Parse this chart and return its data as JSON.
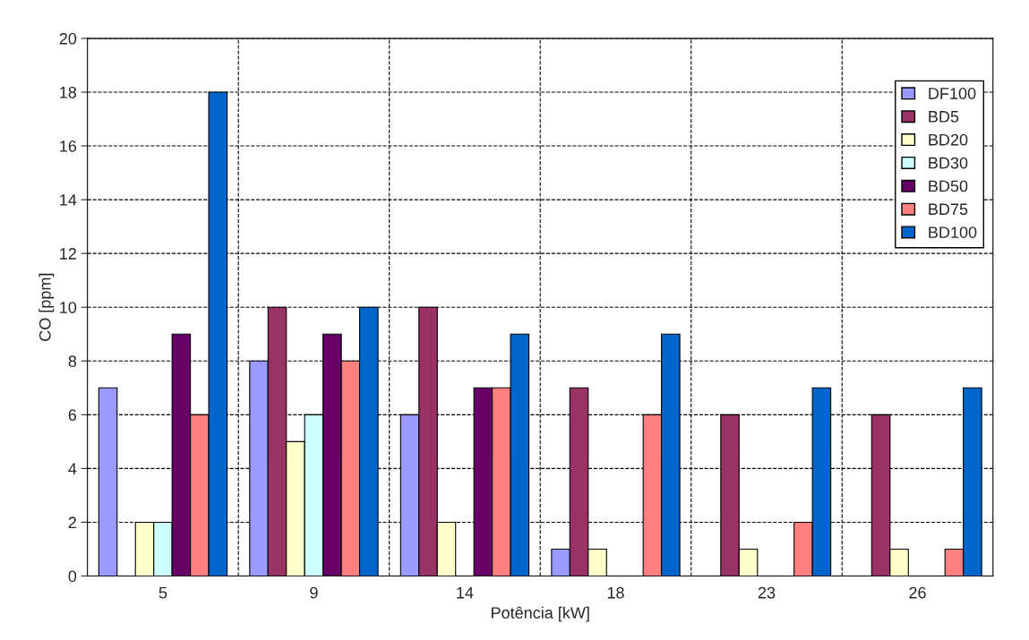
{
  "chart_data": {
    "type": "bar",
    "xlabel": "Potência [kW]",
    "ylabel": "CO [ppm]",
    "categories": [
      "5",
      "9",
      "14",
      "18",
      "23",
      "26"
    ],
    "series": [
      {
        "name": "DF100",
        "color": "#9999ff",
        "values": [
          7,
          8,
          6,
          1,
          null,
          null
        ]
      },
      {
        "name": "BD5",
        "color": "#993366",
        "values": [
          null,
          10,
          10,
          7,
          6,
          6
        ]
      },
      {
        "name": "BD20",
        "color": "#ffffcc",
        "values": [
          2,
          5,
          2,
          1,
          1,
          1
        ]
      },
      {
        "name": "BD30",
        "color": "#ccffff",
        "values": [
          2,
          6,
          null,
          null,
          null,
          null
        ]
      },
      {
        "name": "BD50",
        "color": "#660066",
        "values": [
          9,
          9,
          7,
          null,
          null,
          null
        ]
      },
      {
        "name": "BD75",
        "color": "#ff8080",
        "values": [
          6,
          8,
          7,
          6,
          2,
          1
        ]
      },
      {
        "name": "BD100",
        "color": "#0066cc",
        "values": [
          18,
          10,
          9,
          9,
          7,
          7
        ]
      }
    ],
    "ylim": [
      0,
      20
    ],
    "yticks": [
      0,
      2,
      4,
      6,
      8,
      10,
      12,
      14,
      16,
      18,
      20
    ],
    "grid": true,
    "legend": "top right"
  }
}
